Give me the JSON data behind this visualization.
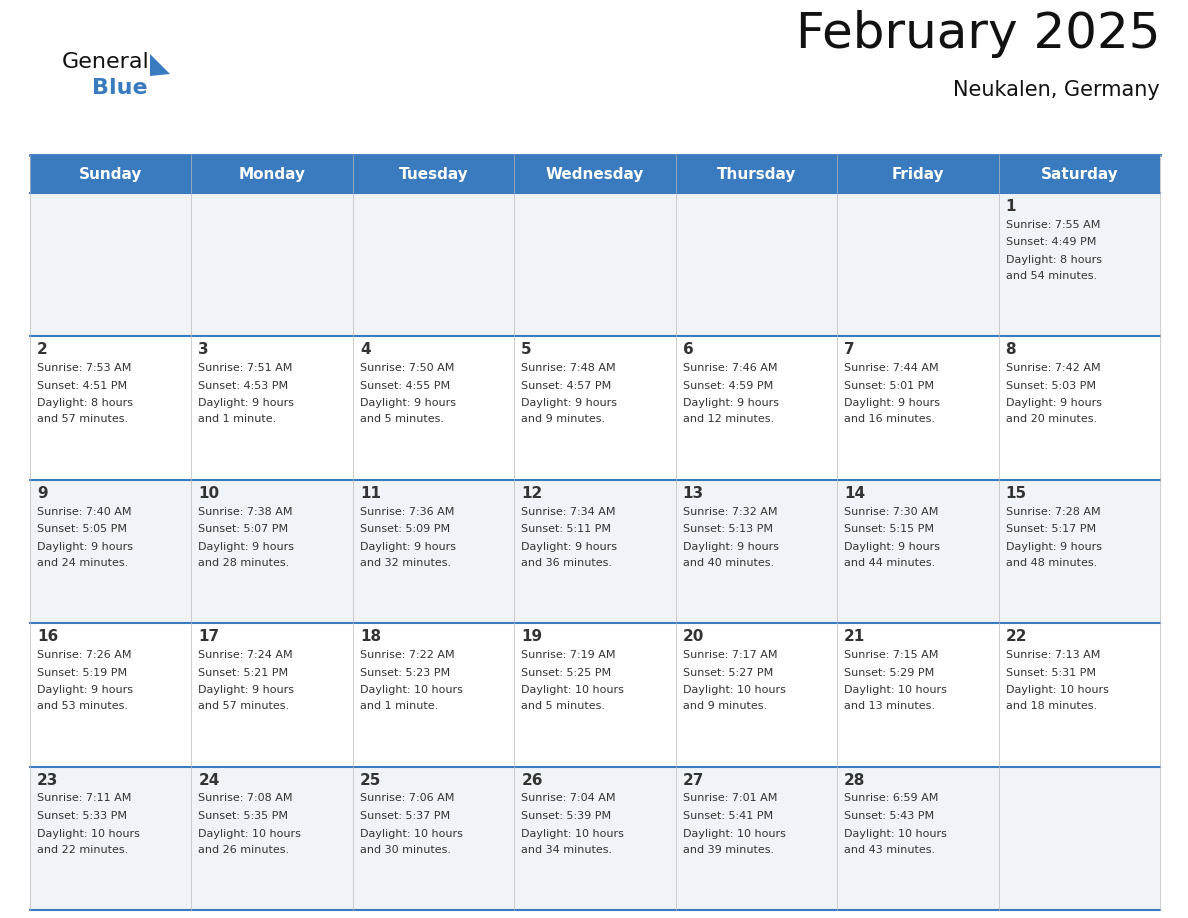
{
  "title": "February 2025",
  "subtitle": "Neukalen, Germany",
  "header_bg": "#3a7bbf",
  "header_text": "#ffffff",
  "cell_bg_even": "#f0f4f8",
  "cell_bg_odd": "#ffffff",
  "separator_color": "#3a7bbf",
  "text_color": "#333333",
  "day_headers": [
    "Sunday",
    "Monday",
    "Tuesday",
    "Wednesday",
    "Thursday",
    "Friday",
    "Saturday"
  ],
  "days_data": [
    {
      "day": 1,
      "col": 6,
      "row": 0,
      "sunrise": "7:55 AM",
      "sunset": "4:49 PM",
      "daylight_line1": "Daylight: 8 hours",
      "daylight_line2": "and 54 minutes."
    },
    {
      "day": 2,
      "col": 0,
      "row": 1,
      "sunrise": "7:53 AM",
      "sunset": "4:51 PM",
      "daylight_line1": "Daylight: 8 hours",
      "daylight_line2": "and 57 minutes."
    },
    {
      "day": 3,
      "col": 1,
      "row": 1,
      "sunrise": "7:51 AM",
      "sunset": "4:53 PM",
      "daylight_line1": "Daylight: 9 hours",
      "daylight_line2": "and 1 minute."
    },
    {
      "day": 4,
      "col": 2,
      "row": 1,
      "sunrise": "7:50 AM",
      "sunset": "4:55 PM",
      "daylight_line1": "Daylight: 9 hours",
      "daylight_line2": "and 5 minutes."
    },
    {
      "day": 5,
      "col": 3,
      "row": 1,
      "sunrise": "7:48 AM",
      "sunset": "4:57 PM",
      "daylight_line1": "Daylight: 9 hours",
      "daylight_line2": "and 9 minutes."
    },
    {
      "day": 6,
      "col": 4,
      "row": 1,
      "sunrise": "7:46 AM",
      "sunset": "4:59 PM",
      "daylight_line1": "Daylight: 9 hours",
      "daylight_line2": "and 12 minutes."
    },
    {
      "day": 7,
      "col": 5,
      "row": 1,
      "sunrise": "7:44 AM",
      "sunset": "5:01 PM",
      "daylight_line1": "Daylight: 9 hours",
      "daylight_line2": "and 16 minutes."
    },
    {
      "day": 8,
      "col": 6,
      "row": 1,
      "sunrise": "7:42 AM",
      "sunset": "5:03 PM",
      "daylight_line1": "Daylight: 9 hours",
      "daylight_line2": "and 20 minutes."
    },
    {
      "day": 9,
      "col": 0,
      "row": 2,
      "sunrise": "7:40 AM",
      "sunset": "5:05 PM",
      "daylight_line1": "Daylight: 9 hours",
      "daylight_line2": "and 24 minutes."
    },
    {
      "day": 10,
      "col": 1,
      "row": 2,
      "sunrise": "7:38 AM",
      "sunset": "5:07 PM",
      "daylight_line1": "Daylight: 9 hours",
      "daylight_line2": "and 28 minutes."
    },
    {
      "day": 11,
      "col": 2,
      "row": 2,
      "sunrise": "7:36 AM",
      "sunset": "5:09 PM",
      "daylight_line1": "Daylight: 9 hours",
      "daylight_line2": "and 32 minutes."
    },
    {
      "day": 12,
      "col": 3,
      "row": 2,
      "sunrise": "7:34 AM",
      "sunset": "5:11 PM",
      "daylight_line1": "Daylight: 9 hours",
      "daylight_line2": "and 36 minutes."
    },
    {
      "day": 13,
      "col": 4,
      "row": 2,
      "sunrise": "7:32 AM",
      "sunset": "5:13 PM",
      "daylight_line1": "Daylight: 9 hours",
      "daylight_line2": "and 40 minutes."
    },
    {
      "day": 14,
      "col": 5,
      "row": 2,
      "sunrise": "7:30 AM",
      "sunset": "5:15 PM",
      "daylight_line1": "Daylight: 9 hours",
      "daylight_line2": "and 44 minutes."
    },
    {
      "day": 15,
      "col": 6,
      "row": 2,
      "sunrise": "7:28 AM",
      "sunset": "5:17 PM",
      "daylight_line1": "Daylight: 9 hours",
      "daylight_line2": "and 48 minutes."
    },
    {
      "day": 16,
      "col": 0,
      "row": 3,
      "sunrise": "7:26 AM",
      "sunset": "5:19 PM",
      "daylight_line1": "Daylight: 9 hours",
      "daylight_line2": "and 53 minutes."
    },
    {
      "day": 17,
      "col": 1,
      "row": 3,
      "sunrise": "7:24 AM",
      "sunset": "5:21 PM",
      "daylight_line1": "Daylight: 9 hours",
      "daylight_line2": "and 57 minutes."
    },
    {
      "day": 18,
      "col": 2,
      "row": 3,
      "sunrise": "7:22 AM",
      "sunset": "5:23 PM",
      "daylight_line1": "Daylight: 10 hours",
      "daylight_line2": "and 1 minute."
    },
    {
      "day": 19,
      "col": 3,
      "row": 3,
      "sunrise": "7:19 AM",
      "sunset": "5:25 PM",
      "daylight_line1": "Daylight: 10 hours",
      "daylight_line2": "and 5 minutes."
    },
    {
      "day": 20,
      "col": 4,
      "row": 3,
      "sunrise": "7:17 AM",
      "sunset": "5:27 PM",
      "daylight_line1": "Daylight: 10 hours",
      "daylight_line2": "and 9 minutes."
    },
    {
      "day": 21,
      "col": 5,
      "row": 3,
      "sunrise": "7:15 AM",
      "sunset": "5:29 PM",
      "daylight_line1": "Daylight: 10 hours",
      "daylight_line2": "and 13 minutes."
    },
    {
      "day": 22,
      "col": 6,
      "row": 3,
      "sunrise": "7:13 AM",
      "sunset": "5:31 PM",
      "daylight_line1": "Daylight: 10 hours",
      "daylight_line2": "and 18 minutes."
    },
    {
      "day": 23,
      "col": 0,
      "row": 4,
      "sunrise": "7:11 AM",
      "sunset": "5:33 PM",
      "daylight_line1": "Daylight: 10 hours",
      "daylight_line2": "and 22 minutes."
    },
    {
      "day": 24,
      "col": 1,
      "row": 4,
      "sunrise": "7:08 AM",
      "sunset": "5:35 PM",
      "daylight_line1": "Daylight: 10 hours",
      "daylight_line2": "and 26 minutes."
    },
    {
      "day": 25,
      "col": 2,
      "row": 4,
      "sunrise": "7:06 AM",
      "sunset": "5:37 PM",
      "daylight_line1": "Daylight: 10 hours",
      "daylight_line2": "and 30 minutes."
    },
    {
      "day": 26,
      "col": 3,
      "row": 4,
      "sunrise": "7:04 AM",
      "sunset": "5:39 PM",
      "daylight_line1": "Daylight: 10 hours",
      "daylight_line2": "and 34 minutes."
    },
    {
      "day": 27,
      "col": 4,
      "row": 4,
      "sunrise": "7:01 AM",
      "sunset": "5:41 PM",
      "daylight_line1": "Daylight: 10 hours",
      "daylight_line2": "and 39 minutes."
    },
    {
      "day": 28,
      "col": 5,
      "row": 4,
      "sunrise": "6:59 AM",
      "sunset": "5:43 PM",
      "daylight_line1": "Daylight: 10 hours",
      "daylight_line2": "and 43 minutes."
    }
  ],
  "num_rows": 5,
  "num_cols": 7,
  "bg_color": "#ffffff",
  "logo_text1": "General",
  "logo_text2": "Blue",
  "logo_triangle_color": "#3a7bbf",
  "title_fontsize": 36,
  "subtitle_fontsize": 15,
  "header_fontsize": 11,
  "daynum_fontsize": 11,
  "cell_fontsize": 8
}
